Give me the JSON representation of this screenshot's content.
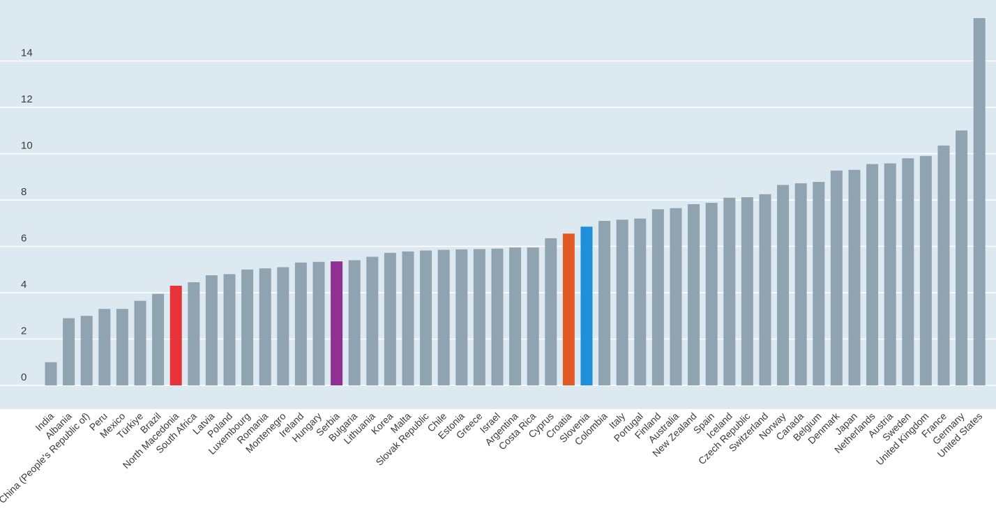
{
  "chart_data": {
    "type": "bar",
    "title": "",
    "xlabel": "",
    "ylabel": "",
    "ylim": [
      -1,
      16
    ],
    "yticks": [
      0,
      2,
      4,
      6,
      8,
      10,
      12,
      14
    ],
    "grid": true,
    "categories": [
      "India",
      "Albania",
      "China (People's Republic of)",
      "Peru",
      "Mexico",
      "Türkiye",
      "Brazil",
      "North Macedonia",
      "South Africa",
      "Latvia",
      "Poland",
      "Luxembourg",
      "Romania",
      "Montenegro",
      "Ireland",
      "Hungary",
      "Serbia",
      "Bulgaria",
      "Lithuania",
      "Korea",
      "Malta",
      "Slovak Republic",
      "Chile",
      "Estonia",
      "Greece",
      "Israel",
      "Argentina",
      "Costa Rica",
      "Cyprus",
      "Croatia",
      "Slovenia",
      "Colombia",
      "Italy",
      "Portugal",
      "Finland",
      "Australia",
      "New Zealand",
      "Spain",
      "Iceland",
      "Czech Republic",
      "Switzerland",
      "Norway",
      "Canada",
      "Belgium",
      "Denmark",
      "Japan",
      "Netherlands",
      "Austria",
      "Sweden",
      "United Kingdom",
      "France",
      "Germany",
      "United States"
    ],
    "values": [
      1.0,
      2.9,
      3.0,
      3.3,
      3.3,
      3.65,
      3.95,
      4.3,
      4.45,
      4.75,
      4.8,
      5.0,
      5.05,
      5.1,
      5.3,
      5.33,
      5.35,
      5.4,
      5.55,
      5.72,
      5.78,
      5.82,
      5.85,
      5.87,
      5.88,
      5.9,
      5.95,
      5.95,
      6.35,
      6.55,
      6.85,
      7.1,
      7.15,
      7.2,
      7.6,
      7.65,
      7.82,
      7.88,
      8.1,
      8.12,
      8.25,
      8.65,
      8.72,
      8.78,
      9.27,
      9.3,
      9.55,
      9.58,
      9.8,
      9.9,
      10.35,
      11.0,
      15.85
    ],
    "default_color": "#8fa3b0",
    "highlights": {
      "North Macedonia": "#e8333a",
      "Serbia": "#8e3191",
      "Croatia": "#e05a25",
      "Slovenia": "#1e8fd8"
    },
    "label_default_color": "#3a3a3a",
    "background_color": "#dde9f1",
    "gridline_color": "#ffffff"
  }
}
